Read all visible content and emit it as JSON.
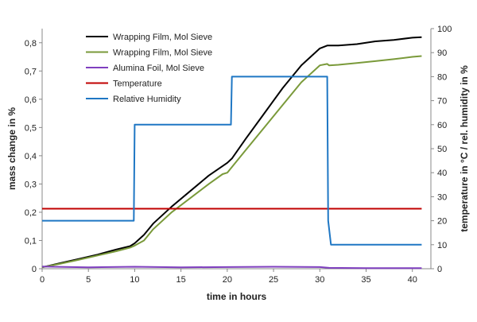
{
  "chart_data": {
    "type": "line",
    "title": "",
    "xlabel": "time in hours",
    "ylabel_left": "mass change in %",
    "ylabel_right": "temperature in °C / rel. humidity in %",
    "xlim": [
      0,
      42
    ],
    "ylim_left": [
      0,
      0.85
    ],
    "ylim_right": [
      0,
      100
    ],
    "x_ticks": [
      0,
      5,
      10,
      15,
      20,
      25,
      30,
      35,
      40
    ],
    "y_left_ticks": [
      0,
      0.1,
      0.2,
      0.3,
      0.4,
      0.5,
      0.6,
      0.7,
      0.8
    ],
    "y_left_tick_labels": [
      "0",
      "0,1",
      "0,2",
      "0,3",
      "0,4",
      "0,5",
      "0,6",
      "0,7",
      "0,8"
    ],
    "y_right_ticks": [
      0,
      10,
      20,
      30,
      40,
      50,
      60,
      70,
      80,
      90,
      100
    ],
    "grid": false,
    "legend_position": "top-left",
    "series": [
      {
        "name": "Wrapping Film, Mol Sieve",
        "axis": "left",
        "color": "#000000",
        "x": [
          0,
          2,
          4,
          6,
          8,
          9.5,
          10,
          11,
          12,
          14,
          16,
          18,
          20,
          20.5,
          22,
          24,
          26,
          28,
          30,
          30.8,
          31,
          32,
          34,
          36,
          38,
          40,
          41
        ],
        "y": [
          0.005,
          0.02,
          0.035,
          0.05,
          0.068,
          0.08,
          0.09,
          0.12,
          0.16,
          0.22,
          0.275,
          0.33,
          0.375,
          0.39,
          0.46,
          0.55,
          0.64,
          0.72,
          0.78,
          0.79,
          0.79,
          0.79,
          0.795,
          0.805,
          0.81,
          0.818,
          0.82
        ]
      },
      {
        "name": "Wrapping Film, Mol Sieve",
        "axis": "left",
        "color": "#7a9a3a",
        "x": [
          0,
          2,
          4,
          6,
          8,
          9.5,
          10,
          11,
          12,
          14,
          16,
          18,
          19.5,
          20,
          21,
          22,
          24,
          26,
          28,
          30,
          30.8,
          31,
          32,
          34,
          36,
          38,
          40,
          41
        ],
        "y": [
          0.005,
          0.018,
          0.032,
          0.047,
          0.062,
          0.075,
          0.082,
          0.1,
          0.14,
          0.2,
          0.25,
          0.3,
          0.335,
          0.34,
          0.38,
          0.42,
          0.5,
          0.58,
          0.66,
          0.72,
          0.725,
          0.72,
          0.722,
          0.728,
          0.735,
          0.742,
          0.75,
          0.753
        ]
      },
      {
        "name": "Alumina Foil, Mol Sieve",
        "axis": "left",
        "color": "#7f3fbf",
        "x": [
          0,
          5,
          10,
          15,
          20,
          25,
          30,
          31,
          35,
          41
        ],
        "y": [
          0.008,
          0.005,
          0.007,
          0.005,
          0.006,
          0.007,
          0.006,
          0.003,
          0.002,
          0.002
        ]
      },
      {
        "name": "Temperature",
        "axis": "right",
        "color": "#c00000",
        "x": [
          0,
          41
        ],
        "y": [
          25,
          25
        ]
      },
      {
        "name": "Relative Humidity",
        "axis": "right",
        "color": "#1f77c4",
        "x": [
          0,
          9.9,
          10,
          20.4,
          20.5,
          30.8,
          30.9,
          31.2,
          41
        ],
        "y": [
          20,
          20,
          60,
          60,
          80,
          80,
          20,
          10,
          10
        ]
      }
    ]
  }
}
